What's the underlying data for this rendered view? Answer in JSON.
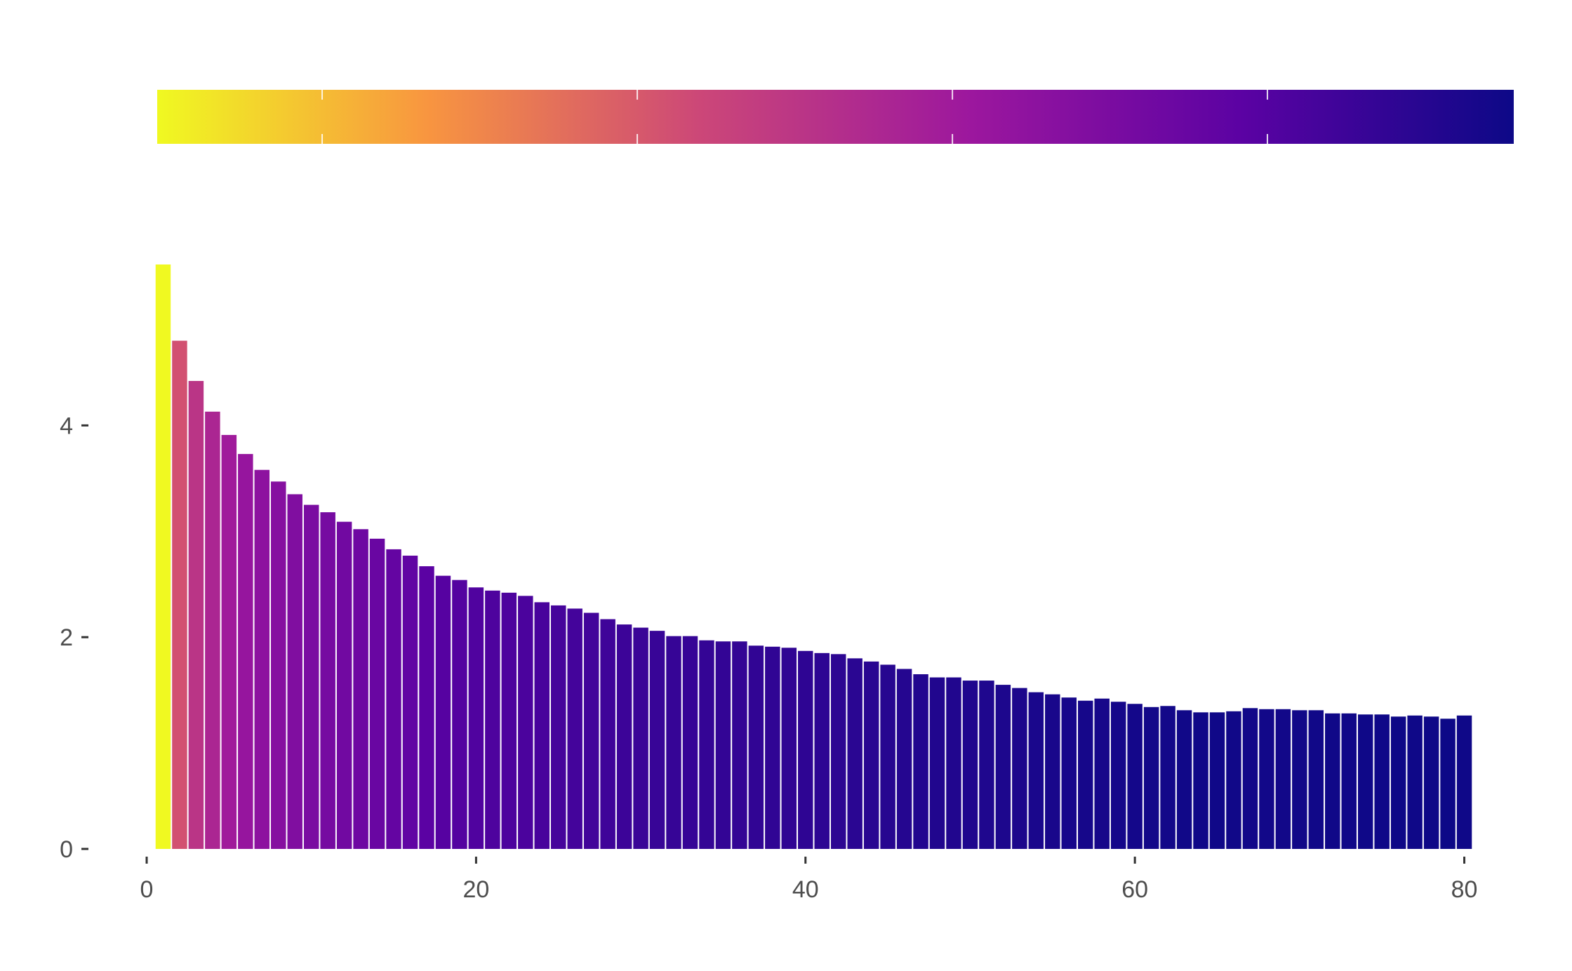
{
  "chart_data": {
    "type": "bar",
    "title": "",
    "xlabel": "",
    "ylabel": "",
    "xlim": [
      0,
      81
    ],
    "ylim": [
      0,
      5.5
    ],
    "x_ticks": [
      "0",
      "20",
      "40",
      "60",
      "80"
    ],
    "x_tick_values": [
      0,
      20,
      40,
      60,
      80
    ],
    "y_ticks": [
      "0",
      "2",
      "4"
    ],
    "y_tick_values": [
      0,
      2,
      4
    ],
    "grid": false,
    "legend": "colorbar-top",
    "colormap": "plasma-reversed",
    "colorbar_stops": [
      "#f0f921",
      "#f89540",
      "#cc4778",
      "#9c179e",
      "#5b02a3",
      "#0d0887"
    ],
    "series": [
      {
        "x": [
          1,
          2,
          3,
          4,
          5,
          6,
          7,
          8,
          9,
          10,
          11,
          12,
          13,
          14,
          15,
          16,
          17,
          18,
          19,
          20,
          21,
          22,
          23,
          24,
          25,
          26,
          27,
          28,
          29,
          30,
          31,
          32,
          33,
          34,
          35,
          36,
          37,
          38,
          39,
          40,
          41,
          42,
          43,
          44,
          45,
          46,
          47,
          48,
          49,
          50,
          51,
          52,
          53,
          54,
          55,
          56,
          57,
          58,
          59,
          60,
          61,
          62,
          63,
          64,
          65,
          66,
          67,
          68,
          69,
          70,
          71,
          72,
          73,
          74,
          75,
          76,
          77,
          78,
          79,
          80
        ],
        "values": [
          5.52,
          4.8,
          4.42,
          4.13,
          3.91,
          3.73,
          3.58,
          3.47,
          3.35,
          3.25,
          3.18,
          3.09,
          3.02,
          2.93,
          2.83,
          2.77,
          2.67,
          2.58,
          2.54,
          2.47,
          2.44,
          2.42,
          2.39,
          2.33,
          2.3,
          2.27,
          2.23,
          2.17,
          2.12,
          2.09,
          2.06,
          2.01,
          2.01,
          1.97,
          1.96,
          1.96,
          1.92,
          1.91,
          1.9,
          1.87,
          1.85,
          1.84,
          1.8,
          1.77,
          1.74,
          1.7,
          1.65,
          1.62,
          1.62,
          1.59,
          1.59,
          1.55,
          1.52,
          1.48,
          1.46,
          1.43,
          1.4,
          1.42,
          1.39,
          1.37,
          1.34,
          1.35,
          1.31,
          1.29,
          1.29,
          1.3,
          1.33,
          1.32,
          1.32,
          1.31,
          1.31,
          1.28,
          1.28,
          1.27,
          1.27,
          1.25,
          1.26,
          1.25,
          1.23,
          1.26
        ]
      }
    ]
  }
}
